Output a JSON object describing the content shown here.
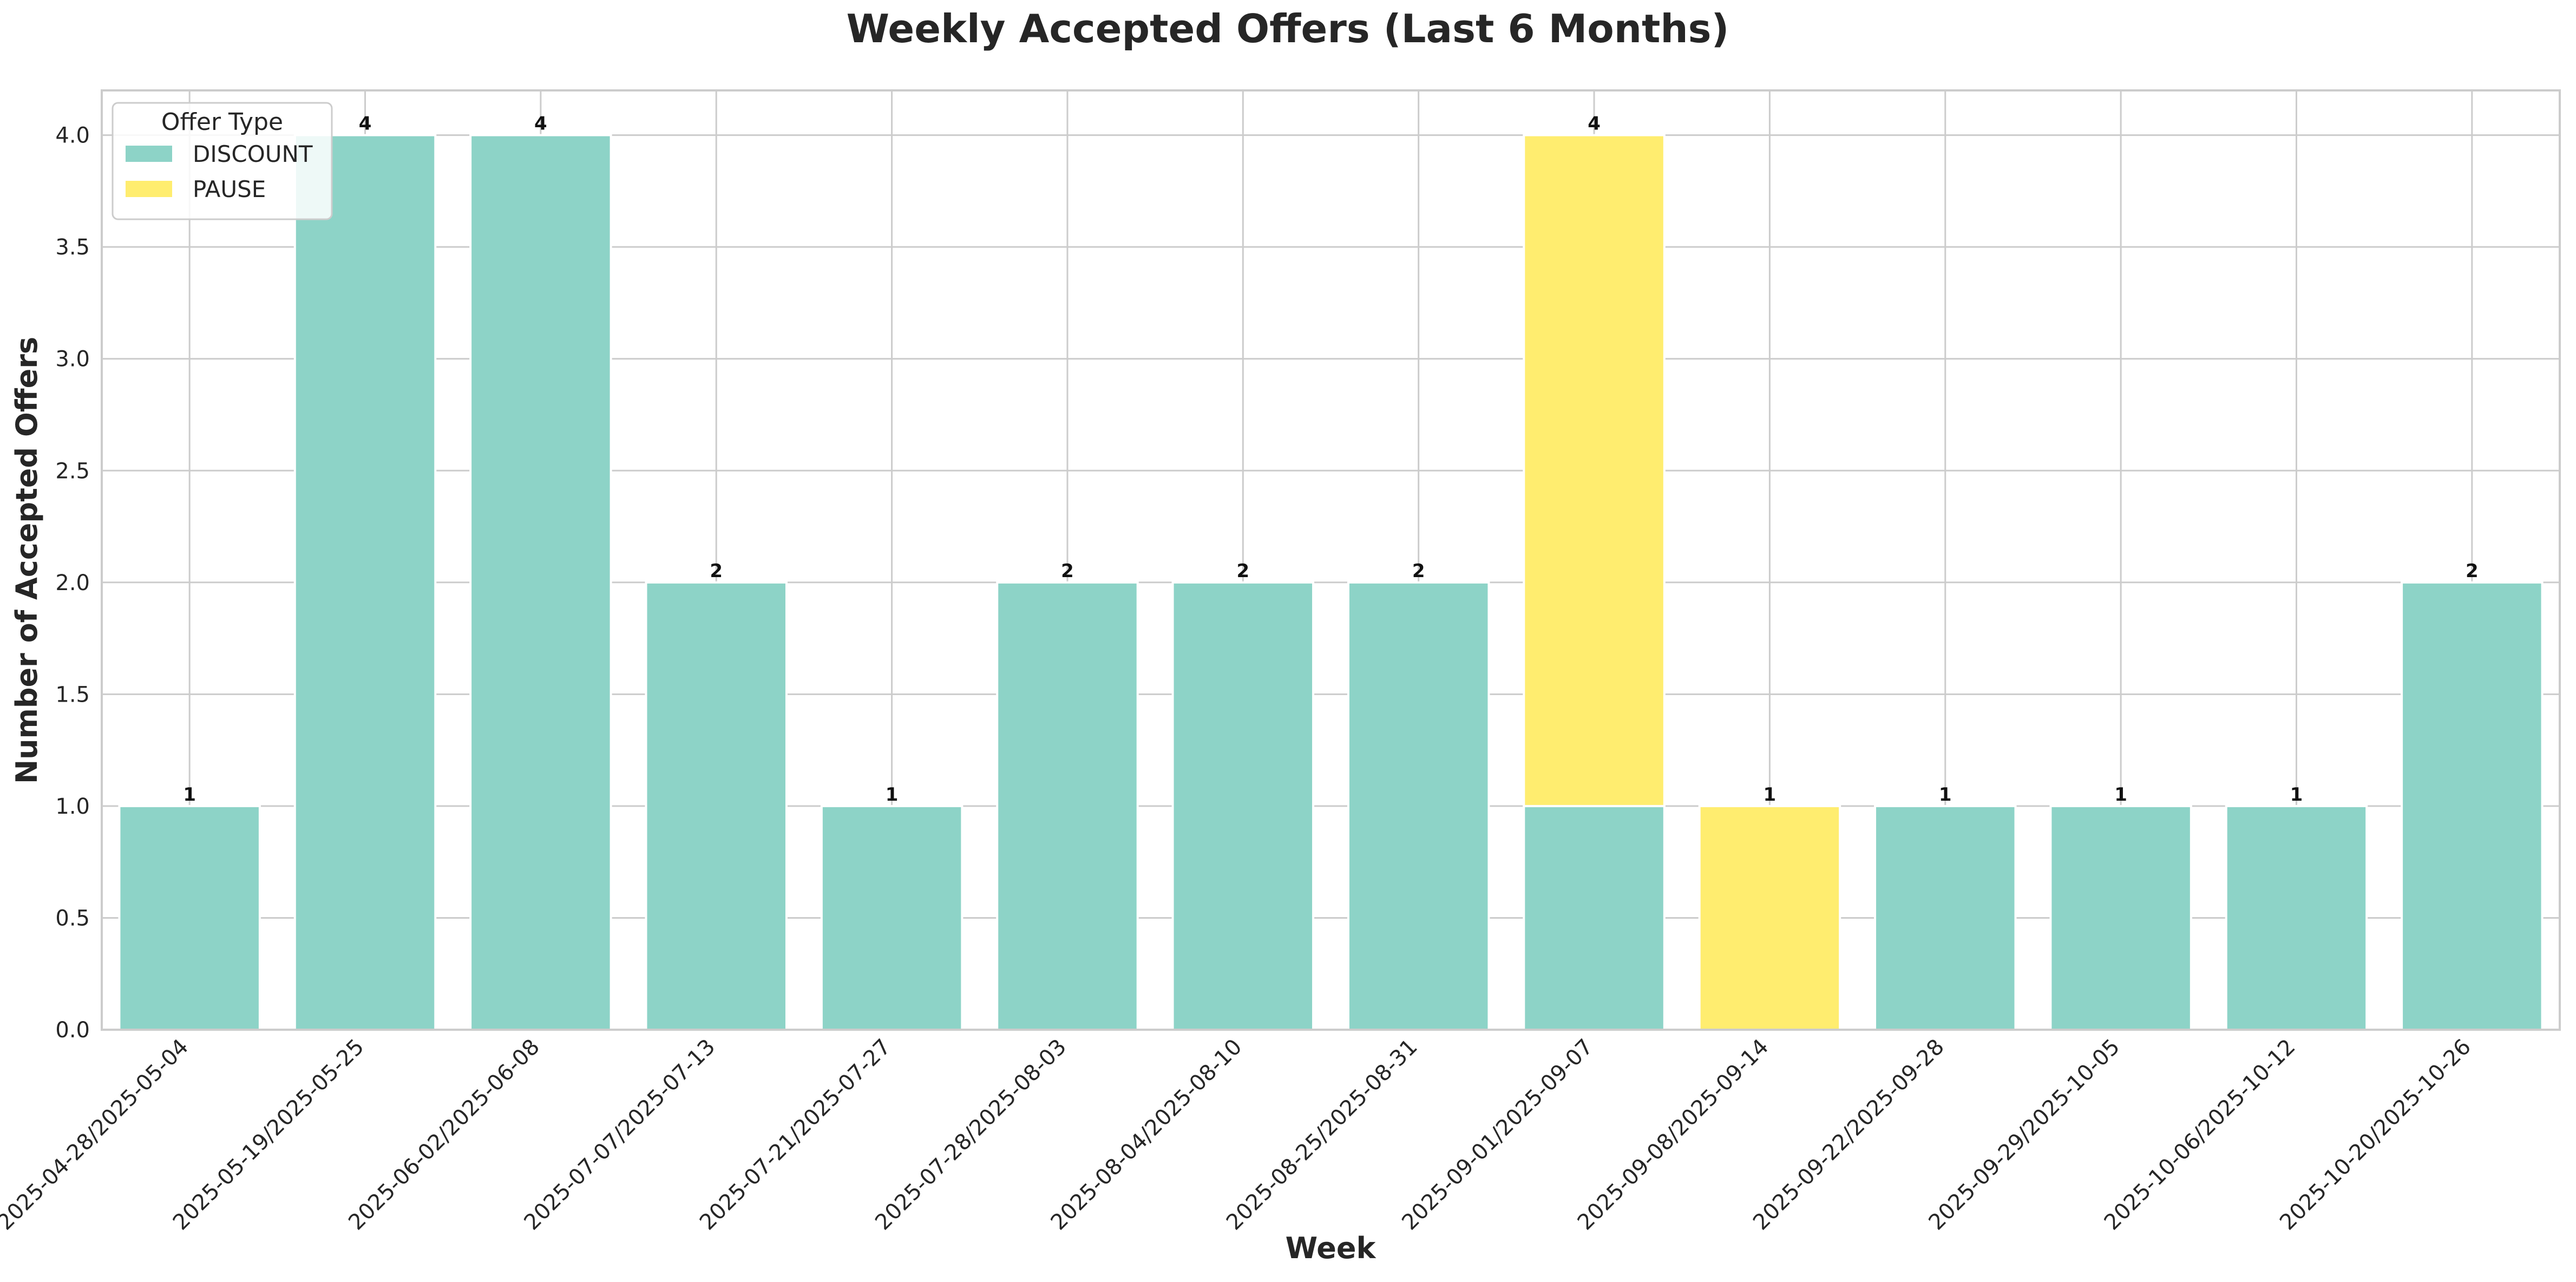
{
  "chart_data": {
    "type": "bar",
    "stacked": true,
    "title": "Weekly Accepted Offers (Last 6 Months)",
    "xlabel": "Week",
    "ylabel": "Number of Accepted Offers",
    "ylim": [
      0,
      4.2
    ],
    "yticks": [
      "0.0",
      "0.5",
      "1.0",
      "1.5",
      "2.0",
      "2.5",
      "3.0",
      "3.5",
      "4.0"
    ],
    "grid": true,
    "legend": {
      "title": "Offer Type",
      "position": "top-left"
    },
    "categories": [
      "2025-04-28/2025-05-04",
      "2025-05-19/2025-05-25",
      "2025-06-02/2025-06-08",
      "2025-07-07/2025-07-13",
      "2025-07-21/2025-07-27",
      "2025-07-28/2025-08-03",
      "2025-08-04/2025-08-10",
      "2025-08-25/2025-08-31",
      "2025-09-01/2025-09-07",
      "2025-09-08/2025-09-14",
      "2025-09-22/2025-09-28",
      "2025-09-29/2025-10-05",
      "2025-10-06/2025-10-12",
      "2025-10-20/2025-10-26"
    ],
    "series": [
      {
        "name": "DISCOUNT",
        "color": "#8dd3c7",
        "values": [
          1,
          4,
          4,
          2,
          1,
          2,
          2,
          2,
          1,
          0,
          1,
          1,
          1,
          2
        ]
      },
      {
        "name": "PAUSE",
        "color": "#ffed6f",
        "values": [
          0,
          0,
          0,
          0,
          0,
          0,
          0,
          0,
          3,
          1,
          0,
          0,
          0,
          0
        ]
      }
    ],
    "totals": [
      "1",
      "4",
      "4",
      "2",
      "1",
      "2",
      "2",
      "2",
      "4",
      "1",
      "1",
      "1",
      "1",
      "2"
    ]
  }
}
